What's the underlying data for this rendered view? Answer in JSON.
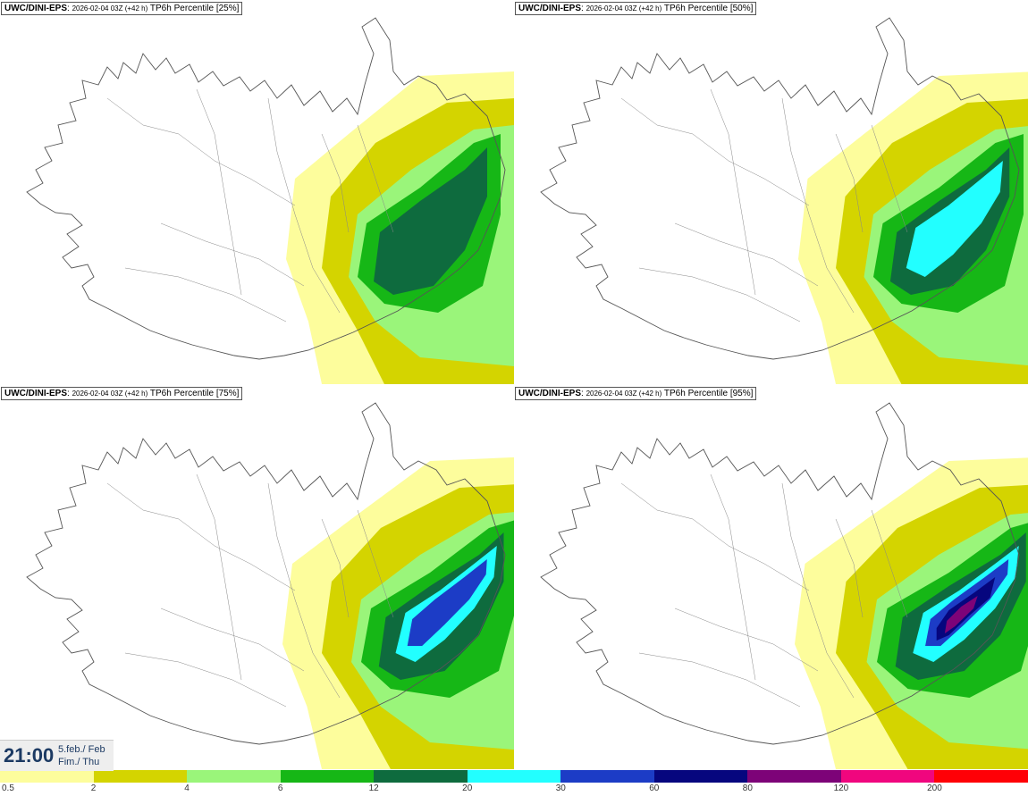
{
  "panels": [
    {
      "source": "UWC/DINI-EPS",
      "run": "2026-02-04 03Z (+42 h)",
      "field": "TP6h Percentile [25%]",
      "level": 0
    },
    {
      "source": "UWC/DINI-EPS",
      "run": "2026-02-04 03Z (+42 h)",
      "field": "TP6h Percentile [50%]",
      "level": 1
    },
    {
      "source": "UWC/DINI-EPS",
      "run": "2026-02-04 03Z (+42 h)",
      "field": "TP6h Percentile [75%]",
      "level": 2
    },
    {
      "source": "UWC/DINI-EPS",
      "run": "2026-02-04 03Z (+42 h)",
      "field": "TP6h Percentile [95%]",
      "level": 3
    }
  ],
  "valid_time": {
    "time": "21:00",
    "date_line1": "5.feb./ Feb",
    "date_line2": "Fim./ Thu"
  },
  "legend": {
    "labels": [
      "0.5",
      "2",
      "4",
      "6",
      "12",
      "20",
      "30",
      "60",
      "80",
      "120",
      "200"
    ],
    "colors": [
      "#fdfd9c",
      "#d4d400",
      "#9af57a",
      "#16b716",
      "#0e6b3e",
      "#22ffff",
      "#1c3cc6",
      "#06067e",
      "#7d0378",
      "#f0067e",
      "#ff0006"
    ]
  }
}
